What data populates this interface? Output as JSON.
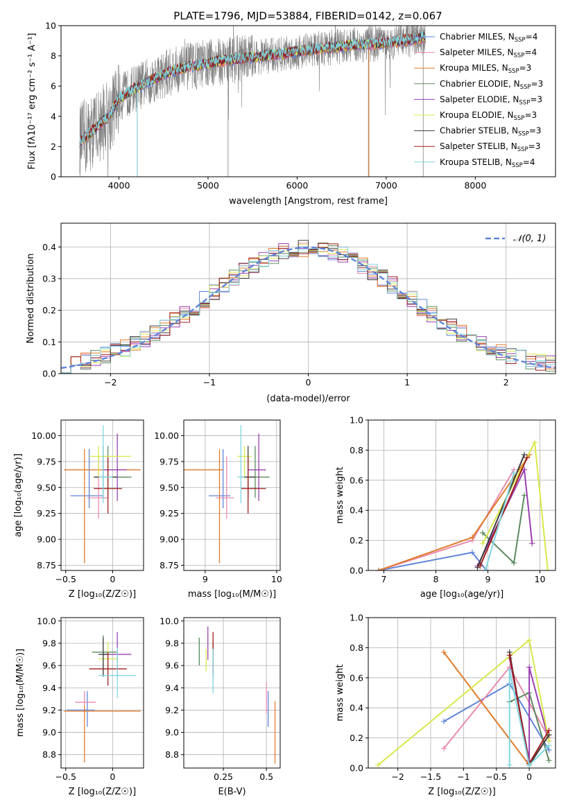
{
  "figure_title": "PLATE=1796, MJD=53884, FIBERID=0142, z=0.067",
  "models": [
    {
      "name": "Chabrier MILES",
      "nssp": "4",
      "color": "#5f84d8"
    },
    {
      "name": "Salpeter MILES",
      "nssp": "4",
      "color": "#e98aab"
    },
    {
      "name": "Kroupa MILES",
      "nssp": "3",
      "color": "#e07b2a"
    },
    {
      "name": "Chabrier ELODIE",
      "nssp": "3",
      "color": "#5b8a5e"
    },
    {
      "name": "Salpeter ELODIE",
      "nssp": "3",
      "color": "#9b3fb0"
    },
    {
      "name": "Kroupa ELODIE",
      "nssp": "3",
      "color": "#d8e84a"
    },
    {
      "name": "Chabrier STELIB",
      "nssp": "3",
      "color": "#3c3c3c"
    },
    {
      "name": "Salpeter STELIB",
      "nssp": "3",
      "color": "#a01c1c"
    },
    {
      "name": "Kroupa STELIB",
      "nssp": "4",
      "color": "#7fd6e0"
    }
  ],
  "nssp_prefix": "N",
  "nssp_sub": "SSP",
  "chart_data": [
    {
      "id": "spectrum",
      "type": "line",
      "xlabel": "wavelength [Angstrom, rest frame]",
      "ylabel": "Flux [fλ10⁻¹⁷ erg cm⁻² s⁻¹ A⁻¹]",
      "xlim": [
        3350,
        8900
      ],
      "ylim": [
        0,
        10
      ],
      "xticks": [
        4000,
        5000,
        6000,
        7000,
        8000
      ],
      "yticks": [
        0,
        2,
        4,
        6,
        8,
        10
      ],
      "data_color": "#808080",
      "continuum": {
        "x": [
          3560,
          3700,
          3900,
          4000,
          4200,
          4400,
          4600,
          4800,
          5000,
          5200,
          5500,
          5800,
          6000,
          6300,
          6600,
          6900,
          7200,
          7400
        ],
        "y": [
          2.3,
          3.0,
          4.1,
          5.2,
          5.9,
          6.5,
          7.0,
          7.3,
          7.5,
          7.7,
          7.9,
          8.1,
          8.3,
          8.5,
          8.7,
          8.8,
          9.0,
          9.2
        ]
      },
      "model_extent": [
        3560,
        7440
      ],
      "grid": false,
      "legend_position": "upper right"
    },
    {
      "id": "residual_histogram",
      "type": "histogram",
      "xlabel": "(data-model)/error",
      "ylabel": "Normed distribution",
      "xlim": [
        -2.5,
        2.5
      ],
      "ylim": [
        0,
        0.475
      ],
      "xticks": [
        -2,
        -1,
        0,
        1,
        2
      ],
      "yticks": [
        0.0,
        0.1,
        0.2,
        0.3,
        0.4
      ],
      "reference_curve": "N(0,1)",
      "reference_label": "𝒩(0, 1)",
      "reference_color": "#5f84d8",
      "grid": true,
      "legend_position": "upper right"
    },
    {
      "id": "age_vs_Z",
      "type": "scatter_errorbars",
      "xlabel": "Z [log₁₀(Z/Z☉)]",
      "ylabel": "age  [log₁₀(age/yr)]",
      "xlim": [
        -0.55,
        0.33
      ],
      "ylim": [
        8.7,
        10.15
      ],
      "xticks": [
        -0.5,
        0.0
      ],
      "yticks": [
        8.75,
        9.0,
        9.25,
        9.5,
        9.75,
        10.0
      ],
      "points": [
        {
          "model": "Chabrier MILES",
          "x": -0.25,
          "y": 9.42,
          "xerr": [
            0.2,
            0.15
          ],
          "yerr": [
            0.12,
            0.45
          ]
        },
        {
          "model": "Salpeter MILES",
          "x": -0.15,
          "y": 9.4,
          "xerr": [
            0.12,
            0.1
          ],
          "yerr": [
            0.2,
            0.4
          ]
        },
        {
          "model": "Kroupa MILES",
          "x": -0.3,
          "y": 9.67,
          "xerr": [
            0.22,
            0.6
          ],
          "yerr": [
            0.9,
            0.2
          ]
        },
        {
          "model": "Chabrier ELODIE",
          "x": -0.05,
          "y": 9.6,
          "xerr": [
            0.15,
            0.25
          ],
          "yerr": [
            0.2,
            0.3
          ]
        },
        {
          "model": "Salpeter ELODIE",
          "x": 0.05,
          "y": 9.67,
          "xerr": [
            0.15,
            0.1
          ],
          "yerr": [
            0.3,
            0.35
          ]
        },
        {
          "model": "Kroupa ELODIE",
          "x": -0.15,
          "y": 9.8,
          "xerr": [
            0.1,
            0.35
          ],
          "yerr": [
            0.2,
            0.1
          ]
        },
        {
          "model": "Chabrier STELIB",
          "x": -0.1,
          "y": 9.6,
          "xerr": [
            0.1,
            0.15
          ],
          "yerr": [
            0.2,
            0.3
          ]
        },
        {
          "model": "Salpeter STELIB",
          "x": -0.05,
          "y": 9.49,
          "xerr": [
            0.15,
            0.15
          ],
          "yerr": [
            0.24,
            0.3
          ]
        },
        {
          "model": "Kroupa STELIB",
          "x": -0.1,
          "y": 9.6,
          "xerr": [
            0.05,
            0.1
          ],
          "yerr": [
            0.25,
            0.5
          ]
        }
      ],
      "grid": true
    },
    {
      "id": "age_vs_mass",
      "type": "scatter_errorbars",
      "xlabel": "mass [log₁₀(M/M☉)]",
      "ylabel": "",
      "xlim": [
        8.7,
        10.05
      ],
      "ylim": [
        8.7,
        10.15
      ],
      "xticks": [
        9,
        10
      ],
      "yticks": [
        8.75,
        9.0,
        9.25,
        9.5,
        9.75,
        10.0
      ],
      "points": [
        {
          "model": "Chabrier MILES",
          "x": 9.25,
          "y": 9.42,
          "xerr": [
            0.2,
            0.1
          ],
          "yerr": [
            0.12,
            0.45
          ]
        },
        {
          "model": "Salpeter MILES",
          "x": 9.3,
          "y": 9.4,
          "xerr": [
            0.15,
            0.1
          ],
          "yerr": [
            0.2,
            0.4
          ]
        },
        {
          "model": "Kroupa MILES",
          "x": 9.2,
          "y": 9.67,
          "xerr": [
            0.5,
            0.05
          ],
          "yerr": [
            0.9,
            0.2
          ]
        },
        {
          "model": "Chabrier ELODIE",
          "x": 9.7,
          "y": 9.6,
          "xerr": [
            0.2,
            0.2
          ],
          "yerr": [
            0.2,
            0.3
          ]
        },
        {
          "model": "Salpeter ELODIE",
          "x": 9.75,
          "y": 9.67,
          "xerr": [
            0.15,
            0.1
          ],
          "yerr": [
            0.3,
            0.35
          ]
        },
        {
          "model": "Kroupa ELODIE",
          "x": 9.55,
          "y": 9.8,
          "xerr": [
            0.1,
            0.1
          ],
          "yerr": [
            0.2,
            0.1
          ]
        },
        {
          "model": "Chabrier STELIB",
          "x": 9.6,
          "y": 9.6,
          "xerr": [
            0.1,
            0.1
          ],
          "yerr": [
            0.2,
            0.3
          ]
        },
        {
          "model": "Salpeter STELIB",
          "x": 9.6,
          "y": 9.49,
          "xerr": [
            0.1,
            0.25
          ],
          "yerr": [
            0.24,
            0.3
          ]
        },
        {
          "model": "Kroupa STELIB",
          "x": 9.5,
          "y": 9.6,
          "xerr": [
            0.05,
            0.05
          ],
          "yerr": [
            0.25,
            0.5
          ]
        }
      ],
      "grid": true
    },
    {
      "id": "massweight_vs_age",
      "type": "line_errorbars",
      "xlabel": "age  [log₁₀(age/yr)]",
      "ylabel": "mass weight",
      "xlim": [
        6.7,
        10.3
      ],
      "ylim": [
        0,
        1.0
      ],
      "xticks": [
        7,
        8,
        9,
        10
      ],
      "yticks": [
        0.0,
        0.2,
        0.4,
        0.6,
        0.8,
        1.0
      ],
      "series": [
        {
          "model": "Chabrier MILES",
          "x": [
            6.9,
            8.7,
            8.97
          ],
          "y": [
            0.0,
            0.12,
            0.0
          ]
        },
        {
          "model": "Salpeter MILES",
          "x": [
            6.9,
            8.7,
            9.5
          ],
          "y": [
            0.0,
            0.2,
            0.67
          ]
        },
        {
          "model": "Kroupa MILES",
          "x": [
            6.9,
            8.7,
            9.8
          ],
          "y": [
            0.0,
            0.22,
            0.77
          ]
        },
        {
          "model": "Chabrier ELODIE",
          "x": [
            8.9,
            9.5,
            9.7
          ],
          "y": [
            0.25,
            0.05,
            0.5
          ]
        },
        {
          "model": "Salpeter ELODIE",
          "x": [
            8.8,
            9.7,
            9.85
          ],
          "y": [
            0.03,
            0.67,
            0.18
          ]
        },
        {
          "model": "Kroupa ELODIE",
          "x": [
            8.9,
            9.9,
            10.15
          ],
          "y": [
            0.18,
            0.85,
            0.0
          ]
        },
        {
          "model": "Chabrier STELIB",
          "x": [
            8.8,
            9.7
          ],
          "y": [
            0.02,
            0.77
          ]
        },
        {
          "model": "Salpeter STELIB",
          "x": [
            8.85,
            9.75
          ],
          "y": [
            0.03,
            0.75
          ]
        },
        {
          "model": "Kroupa STELIB",
          "x": [
            8.95,
            9.5
          ],
          "y": [
            0.0,
            0.65
          ]
        }
      ],
      "grid": true
    },
    {
      "id": "mass_vs_Z",
      "type": "scatter_errorbars",
      "xlabel": "Z [log₁₀(Z/Z☉)]",
      "ylabel": "mass [log₁₀(M/M☉)]",
      "xlim": [
        -0.55,
        0.33
      ],
      "ylim": [
        8.68,
        10.03
      ],
      "xticks": [
        -0.5,
        0.0
      ],
      "yticks": [
        8.8,
        9.0,
        9.2,
        9.4,
        9.6,
        9.8,
        10.0
      ],
      "points": [
        {
          "model": "Chabrier MILES",
          "x": -0.27,
          "y": 9.2,
          "xerr": [
            0.22,
            0.08
          ],
          "yerr": [
            0.15,
            0.17
          ]
        },
        {
          "model": "Salpeter MILES",
          "x": -0.3,
          "y": 9.27,
          "xerr": [
            0.1,
            0.12
          ],
          "yerr": [
            0.1,
            0.1
          ]
        },
        {
          "model": "Kroupa MILES",
          "x": -0.3,
          "y": 9.19,
          "xerr": [
            0.22,
            0.6
          ],
          "yerr": [
            0.46,
            0.05
          ]
        },
        {
          "model": "Chabrier ELODIE",
          "x": -0.1,
          "y": 9.72,
          "xerr": [
            0.12,
            0.15
          ],
          "yerr": [
            0.2,
            0.15
          ]
        },
        {
          "model": "Salpeter ELODIE",
          "x": 0.05,
          "y": 9.7,
          "xerr": [
            0.15,
            0.15
          ],
          "yerr": [
            0.2,
            0.2
          ]
        },
        {
          "model": "Kroupa ELODIE",
          "x": -0.05,
          "y": 9.66,
          "xerr": [
            0.1,
            0.1
          ],
          "yerr": [
            0.15,
            0.15
          ]
        },
        {
          "model": "Chabrier STELIB",
          "x": -0.1,
          "y": 9.7,
          "xerr": [
            0.05,
            0.05
          ],
          "yerr": [
            0.2,
            0.15
          ]
        },
        {
          "model": "Salpeter STELIB",
          "x": -0.05,
          "y": 9.57,
          "xerr": [
            0.2,
            0.2
          ],
          "yerr": [
            0.15,
            0.15
          ]
        },
        {
          "model": "Kroupa STELIB",
          "x": 0.05,
          "y": 9.51,
          "xerr": [
            0.2,
            0.2
          ],
          "yerr": [
            0.2,
            0.25
          ]
        }
      ],
      "grid": true
    },
    {
      "id": "mass_vs_EBV",
      "type": "scatter_errorbars",
      "xlabel": "E(B-V)",
      "ylabel": "",
      "xlim": [
        0.02,
        0.58
      ],
      "ylim": [
        8.68,
        10.03
      ],
      "xticks": [
        0.25,
        0.5
      ],
      "yticks": [
        8.8,
        9.0,
        9.2,
        9.4,
        9.6,
        9.8,
        10.0
      ],
      "points": [
        {
          "model": "Chabrier MILES",
          "x": 0.51,
          "y": 9.2,
          "xerr": [
            0,
            0
          ],
          "yerr": [
            0.15,
            0.17
          ]
        },
        {
          "model": "Salpeter MILES",
          "x": 0.5,
          "y": 9.27,
          "xerr": [
            0,
            0
          ],
          "yerr": [
            0.1,
            0.18
          ]
        },
        {
          "model": "Kroupa MILES",
          "x": 0.55,
          "y": 9.0,
          "xerr": [
            0,
            0
          ],
          "yerr": [
            0.28,
            0.28
          ]
        },
        {
          "model": "Chabrier ELODIE",
          "x": 0.11,
          "y": 9.7,
          "xerr": [
            0,
            0
          ],
          "yerr": [
            0.1,
            0.15
          ]
        },
        {
          "model": "Salpeter ELODIE",
          "x": 0.16,
          "y": 9.8,
          "xerr": [
            0,
            0
          ],
          "yerr": [
            0.15,
            0.15
          ]
        },
        {
          "model": "Kroupa ELODIE",
          "x": 0.15,
          "y": 9.65,
          "xerr": [
            0,
            0
          ],
          "yerr": [
            0.1,
            0.1
          ]
        },
        {
          "model": "Chabrier STELIB",
          "x": 0.19,
          "y": 9.7,
          "xerr": [
            0,
            0
          ],
          "yerr": [
            0.2,
            0.1
          ]
        },
        {
          "model": "Salpeter STELIB",
          "x": 0.19,
          "y": 9.7,
          "xerr": [
            0,
            0
          ],
          "yerr": [
            0.2,
            0.2
          ]
        },
        {
          "model": "Kroupa STELIB",
          "x": 0.19,
          "y": 9.55,
          "xerr": [
            0,
            0
          ],
          "yerr": [
            0.2,
            0.2
          ]
        }
      ],
      "grid": true
    },
    {
      "id": "massweight_vs_Z",
      "type": "line_errorbars",
      "xlabel": "Z [log₁₀(Z/Z☉)]",
      "ylabel": "mass weight",
      "xlim": [
        -2.45,
        0.4
      ],
      "ylim": [
        0,
        1.0
      ],
      "xticks": [
        -2.0,
        -1.5,
        -1.0,
        -0.5,
        0.0
      ],
      "yticks": [
        0.0,
        0.2,
        0.4,
        0.6,
        0.8,
        1.0
      ],
      "series": [
        {
          "model": "Chabrier MILES",
          "x": [
            -1.3,
            -0.3,
            0.3
          ],
          "y": [
            0.31,
            0.56,
            0.12
          ]
        },
        {
          "model": "Salpeter MILES",
          "x": [
            -1.3,
            -0.3,
            0.3
          ],
          "y": [
            0.13,
            0.67,
            0.2
          ]
        },
        {
          "model": "Kroupa MILES",
          "x": [
            -1.3,
            0.0,
            0.3
          ],
          "y": [
            0.77,
            0.02,
            0.22
          ]
        },
        {
          "model": "Chabrier ELODIE",
          "x": [
            -0.3,
            0.0,
            0.3
          ],
          "y": [
            0.44,
            0.5,
            0.05
          ]
        },
        {
          "model": "Salpeter ELODIE",
          "x": [
            -0.3,
            0.0,
            0.0,
            0.3
          ],
          "y": [
            0.73,
            0.05,
            0.67,
            0.18
          ]
        },
        {
          "model": "Kroupa ELODIE",
          "x": [
            -2.3,
            0.0,
            0.3
          ],
          "y": [
            0.02,
            0.85,
            0.18
          ]
        },
        {
          "model": "Chabrier STELIB",
          "x": [
            -0.3,
            0.0,
            0.3
          ],
          "y": [
            0.77,
            0.02,
            0.22
          ]
        },
        {
          "model": "Salpeter STELIB",
          "x": [
            -0.3,
            0.0,
            0.3
          ],
          "y": [
            0.75,
            0.03,
            0.25
          ]
        },
        {
          "model": "Kroupa STELIB",
          "x": [
            -0.3,
            -0.3,
            0.0,
            0.3
          ],
          "y": [
            0.02,
            0.65,
            0.02,
            0.15
          ]
        }
      ],
      "grid": true
    }
  ]
}
